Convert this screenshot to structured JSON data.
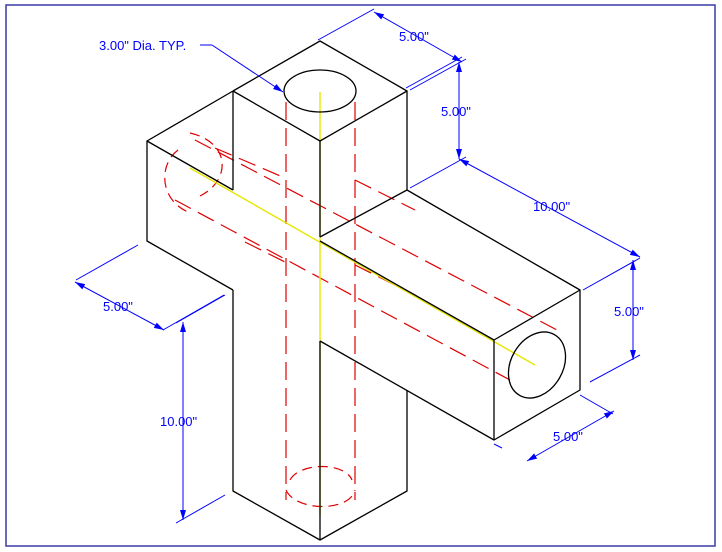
{
  "colors": {
    "background": "#ffffff",
    "frame": "#3a3aa8",
    "outline": "#000000",
    "hidden_line": "#e00000",
    "center_line": "#e6e600",
    "dimension": "#0000ff"
  },
  "dimensions": {
    "hole_callout": "3.00\" Dia. TYP.",
    "top_width": "5.00\"",
    "top_height": "5.00\"",
    "arm_length": "10.00\"",
    "right_height": "5.00\"",
    "right_width": "5.00\"",
    "left_width": "5.00\"",
    "bottom_length": "10.00\""
  }
}
